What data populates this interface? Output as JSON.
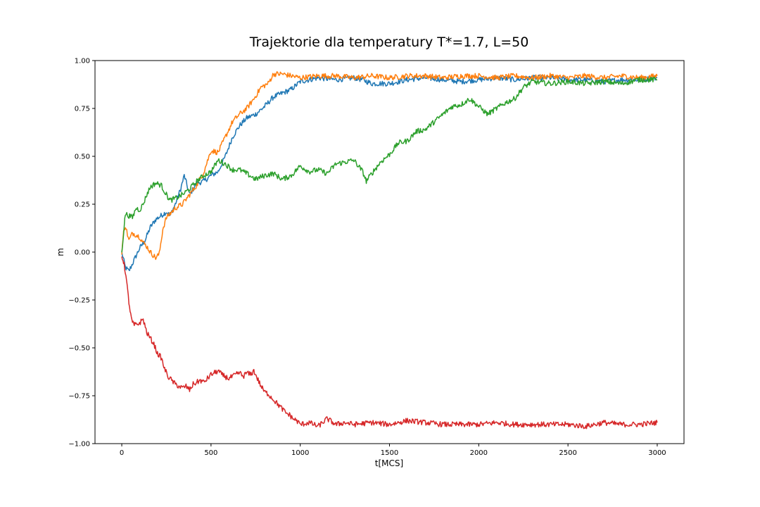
{
  "chart_data": {
    "type": "line",
    "title": "Trajektorie dla temperatury T*=1.7, L=50",
    "xlabel": "t[MCS]",
    "ylabel": "m",
    "xlim": [
      -150,
      3150
    ],
    "ylim": [
      -1.0,
      1.0
    ],
    "xticks": [
      0,
      500,
      1000,
      1500,
      2000,
      2500,
      3000
    ],
    "yticks": [
      -1.0,
      -0.75,
      -0.5,
      -0.25,
      0.0,
      0.25,
      0.5,
      0.75,
      1.0
    ],
    "xtick_labels": [
      "0",
      "500",
      "1000",
      "1500",
      "2000",
      "2500",
      "3000"
    ],
    "ytick_labels": [
      "−1.00",
      "−0.75",
      "−0.50",
      "−0.25",
      "0.00",
      "0.25",
      "0.50",
      "0.75",
      "1.00"
    ],
    "grid": false,
    "legend": false,
    "series": [
      {
        "color": "#1f77b4",
        "x": [
          0,
          20,
          40,
          60,
          80,
          100,
          130,
          160,
          190,
          220,
          250,
          270,
          300,
          330,
          350,
          380,
          420,
          460,
          500,
          540,
          580,
          620,
          660,
          700,
          750,
          800,
          850,
          900,
          950,
          1000,
          1100,
          1200,
          1300,
          1350,
          1400,
          1500,
          1600,
          1700,
          1800,
          1900,
          2000,
          2100,
          2200,
          2300,
          2400,
          2500,
          2600,
          2700,
          2800,
          2900,
          3000
        ],
        "y": [
          0.0,
          -0.08,
          -0.1,
          -0.06,
          -0.02,
          0.02,
          0.06,
          0.13,
          0.17,
          0.19,
          0.21,
          0.19,
          0.25,
          0.33,
          0.4,
          0.3,
          0.36,
          0.37,
          0.4,
          0.42,
          0.5,
          0.6,
          0.66,
          0.7,
          0.72,
          0.76,
          0.81,
          0.83,
          0.85,
          0.89,
          0.91,
          0.9,
          0.91,
          0.9,
          0.88,
          0.88,
          0.9,
          0.91,
          0.9,
          0.89,
          0.9,
          0.91,
          0.9,
          0.91,
          0.91,
          0.9,
          0.9,
          0.89,
          0.9,
          0.9,
          0.91
        ]
      },
      {
        "color": "#ff7f0e",
        "x": [
          0,
          10,
          20,
          40,
          60,
          80,
          100,
          120,
          140,
          160,
          190,
          210,
          230,
          250,
          270,
          300,
          340,
          380,
          420,
          460,
          500,
          540,
          580,
          620,
          660,
          700,
          740,
          780,
          820,
          850,
          900,
          950,
          1000,
          1100,
          1200,
          1300,
          1400,
          1500,
          1600,
          1700,
          1800,
          1900,
          2000,
          2100,
          2200,
          2300,
          2400,
          2500,
          2600,
          2700,
          2800,
          2900,
          3000
        ],
        "y": [
          0.0,
          0.1,
          0.14,
          0.06,
          0.1,
          0.09,
          0.08,
          0.05,
          0.03,
          0.0,
          -0.03,
          -0.01,
          0.12,
          0.18,
          0.2,
          0.23,
          0.25,
          0.3,
          0.35,
          0.42,
          0.53,
          0.52,
          0.6,
          0.68,
          0.72,
          0.75,
          0.8,
          0.86,
          0.88,
          0.93,
          0.93,
          0.92,
          0.91,
          0.92,
          0.92,
          0.91,
          0.92,
          0.91,
          0.92,
          0.92,
          0.91,
          0.92,
          0.92,
          0.91,
          0.92,
          0.91,
          0.92,
          0.91,
          0.92,
          0.91,
          0.92,
          0.91,
          0.92
        ]
      },
      {
        "color": "#2ca02c",
        "x": [
          0,
          10,
          20,
          40,
          60,
          80,
          100,
          120,
          140,
          160,
          190,
          220,
          250,
          270,
          300,
          340,
          380,
          420,
          460,
          500,
          540,
          580,
          620,
          660,
          700,
          750,
          800,
          850,
          900,
          950,
          1000,
          1050,
          1100,
          1150,
          1200,
          1250,
          1300,
          1350,
          1370,
          1400,
          1450,
          1500,
          1550,
          1600,
          1650,
          1700,
          1750,
          1800,
          1850,
          1900,
          1950,
          2000,
          2050,
          2100,
          2150,
          2200,
          2250,
          2300,
          2400,
          2500,
          2600,
          2700,
          2800,
          2900,
          3000
        ],
        "y": [
          0.0,
          0.1,
          0.2,
          0.19,
          0.18,
          0.23,
          0.22,
          0.25,
          0.3,
          0.34,
          0.36,
          0.35,
          0.3,
          0.27,
          0.28,
          0.3,
          0.33,
          0.37,
          0.4,
          0.42,
          0.48,
          0.46,
          0.43,
          0.43,
          0.41,
          0.38,
          0.4,
          0.41,
          0.38,
          0.4,
          0.45,
          0.42,
          0.43,
          0.41,
          0.46,
          0.47,
          0.48,
          0.42,
          0.37,
          0.41,
          0.47,
          0.51,
          0.57,
          0.58,
          0.63,
          0.64,
          0.68,
          0.72,
          0.76,
          0.77,
          0.8,
          0.76,
          0.72,
          0.75,
          0.78,
          0.8,
          0.86,
          0.89,
          0.88,
          0.89,
          0.88,
          0.89,
          0.88,
          0.9,
          0.9
        ]
      },
      {
        "color": "#d62728",
        "x": [
          0,
          10,
          20,
          30,
          40,
          50,
          60,
          70,
          80,
          100,
          120,
          140,
          160,
          180,
          200,
          220,
          240,
          260,
          280,
          300,
          320,
          340,
          360,
          380,
          400,
          420,
          440,
          460,
          480,
          500,
          520,
          540,
          560,
          580,
          600,
          620,
          640,
          660,
          680,
          700,
          720,
          740,
          760,
          780,
          800,
          820,
          840,
          860,
          880,
          900,
          920,
          940,
          960,
          980,
          1000,
          1050,
          1100,
          1150,
          1200,
          1250,
          1300,
          1400,
          1500,
          1600,
          1700,
          1800,
          1900,
          2000,
          2100,
          2200,
          2300,
          2400,
          2500,
          2600,
          2700,
          2800,
          2900,
          3000
        ],
        "y": [
          -0.02,
          -0.05,
          -0.1,
          -0.18,
          -0.26,
          -0.33,
          -0.37,
          -0.38,
          -0.38,
          -0.37,
          -0.35,
          -0.42,
          -0.45,
          -0.48,
          -0.53,
          -0.55,
          -0.61,
          -0.65,
          -0.67,
          -0.69,
          -0.7,
          -0.71,
          -0.7,
          -0.72,
          -0.69,
          -0.68,
          -0.67,
          -0.68,
          -0.66,
          -0.64,
          -0.63,
          -0.62,
          -0.64,
          -0.65,
          -0.66,
          -0.65,
          -0.64,
          -0.63,
          -0.65,
          -0.63,
          -0.64,
          -0.62,
          -0.66,
          -0.7,
          -0.73,
          -0.74,
          -0.76,
          -0.78,
          -0.8,
          -0.82,
          -0.84,
          -0.85,
          -0.87,
          -0.88,
          -0.9,
          -0.89,
          -0.91,
          -0.87,
          -0.9,
          -0.89,
          -0.9,
          -0.89,
          -0.9,
          -0.88,
          -0.89,
          -0.9,
          -0.9,
          -0.9,
          -0.89,
          -0.9,
          -0.9,
          -0.9,
          -0.9,
          -0.91,
          -0.89,
          -0.9,
          -0.9,
          -0.89
        ]
      }
    ]
  }
}
